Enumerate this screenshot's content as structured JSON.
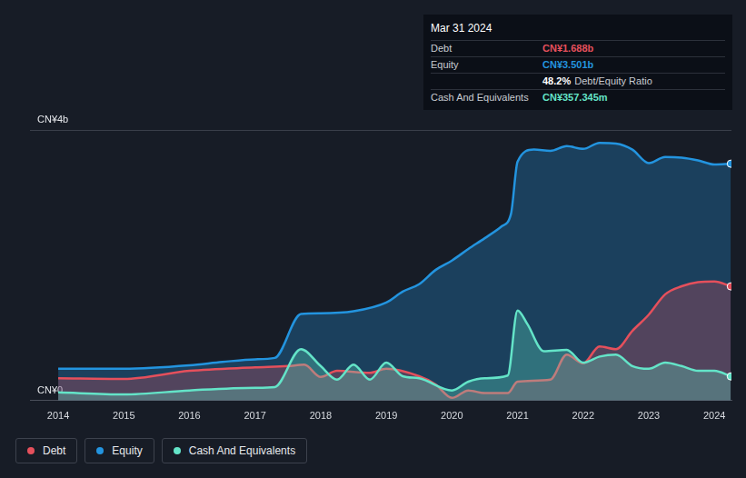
{
  "chart_data": {
    "type": "area",
    "series": [
      {
        "name": "Debt",
        "color": "#e5505c",
        "x": [
          2014,
          2015,
          2016,
          2017,
          2017.5,
          2017.75,
          2018,
          2018.25,
          2018.75,
          2019,
          2019.5,
          2019.75,
          2020,
          2020.25,
          2020.5,
          2020.85,
          2021,
          2021.5,
          2021.75,
          2022,
          2022.25,
          2022.5,
          2022.75,
          2023,
          2023.25,
          2023.5,
          2023.75,
          2024,
          2024.25
        ],
        "values": [
          0.33,
          0.32,
          0.44,
          0.49,
          0.51,
          0.53,
          0.35,
          0.44,
          0.41,
          0.47,
          0.36,
          0.24,
          0.04,
          0.15,
          0.11,
          0.11,
          0.28,
          0.31,
          0.68,
          0.55,
          0.8,
          0.76,
          1.03,
          1.27,
          1.57,
          1.69,
          1.75,
          1.76,
          1.688
        ]
      },
      {
        "name": "Equity",
        "color": "#2394df",
        "x": [
          2014,
          2015,
          2016,
          2016.5,
          2017,
          2017.3,
          2017.7,
          2018,
          2018.5,
          2019,
          2019.25,
          2019.5,
          2019.75,
          2020,
          2020.25,
          2020.5,
          2020.75,
          2020.9,
          2021,
          2021.25,
          2021.5,
          2021.75,
          2022,
          2022.25,
          2022.5,
          2022.75,
          2023,
          2023.25,
          2023.5,
          2023.75,
          2024,
          2024.25
        ],
        "values": [
          0.47,
          0.47,
          0.52,
          0.57,
          0.61,
          0.63,
          1.28,
          1.29,
          1.32,
          1.45,
          1.61,
          1.72,
          1.93,
          2.07,
          2.24,
          2.4,
          2.57,
          2.76,
          3.53,
          3.71,
          3.69,
          3.76,
          3.72,
          3.81,
          3.8,
          3.71,
          3.51,
          3.6,
          3.59,
          3.55,
          3.49,
          3.501
        ]
      },
      {
        "name": "Cash And Equivalents",
        "color": "#64e4c8",
        "x": [
          2014,
          2015,
          2016,
          2017,
          2017.3,
          2017.7,
          2018,
          2018.25,
          2018.5,
          2018.75,
          2019,
          2019.25,
          2019.5,
          2020,
          2020.25,
          2020.5,
          2020.85,
          2021,
          2021.15,
          2021.4,
          2021.75,
          2022,
          2022.25,
          2022.5,
          2022.75,
          2023,
          2023.25,
          2023.5,
          2023.75,
          2024,
          2024.25
        ],
        "values": [
          0.12,
          0.09,
          0.15,
          0.19,
          0.2,
          0.76,
          0.51,
          0.31,
          0.53,
          0.31,
          0.56,
          0.36,
          0.33,
          0.15,
          0.28,
          0.33,
          0.37,
          1.33,
          1.13,
          0.73,
          0.75,
          0.56,
          0.65,
          0.68,
          0.51,
          0.47,
          0.56,
          0.51,
          0.44,
          0.44,
          0.357345
        ]
      }
    ],
    "xlim": [
      2013.57,
      2024.26
    ],
    "xticks": [
      2014,
      2015,
      2016,
      2017,
      2018,
      2019,
      2020,
      2021,
      2022,
      2023,
      2024
    ],
    "ylim": [
      0,
      4
    ],
    "yticks": [
      {
        "value": 0,
        "label": "CN¥0"
      },
      {
        "value": 4,
        "label": "CN¥4b"
      }
    ],
    "grid": true,
    "legend": "bottom left",
    "annotations": {
      "title": "Mar 31 2024",
      "rows": [
        {
          "label": "Debt",
          "value": "CN¥1.688b"
        },
        {
          "label": "Equity",
          "value": "CN¥3.501b"
        },
        {
          "value": "48.2%",
          "note": "Debt/Equity Ratio"
        },
        {
          "label": "Cash And Equivalents",
          "value": "CN¥357.345m"
        }
      ]
    }
  }
}
